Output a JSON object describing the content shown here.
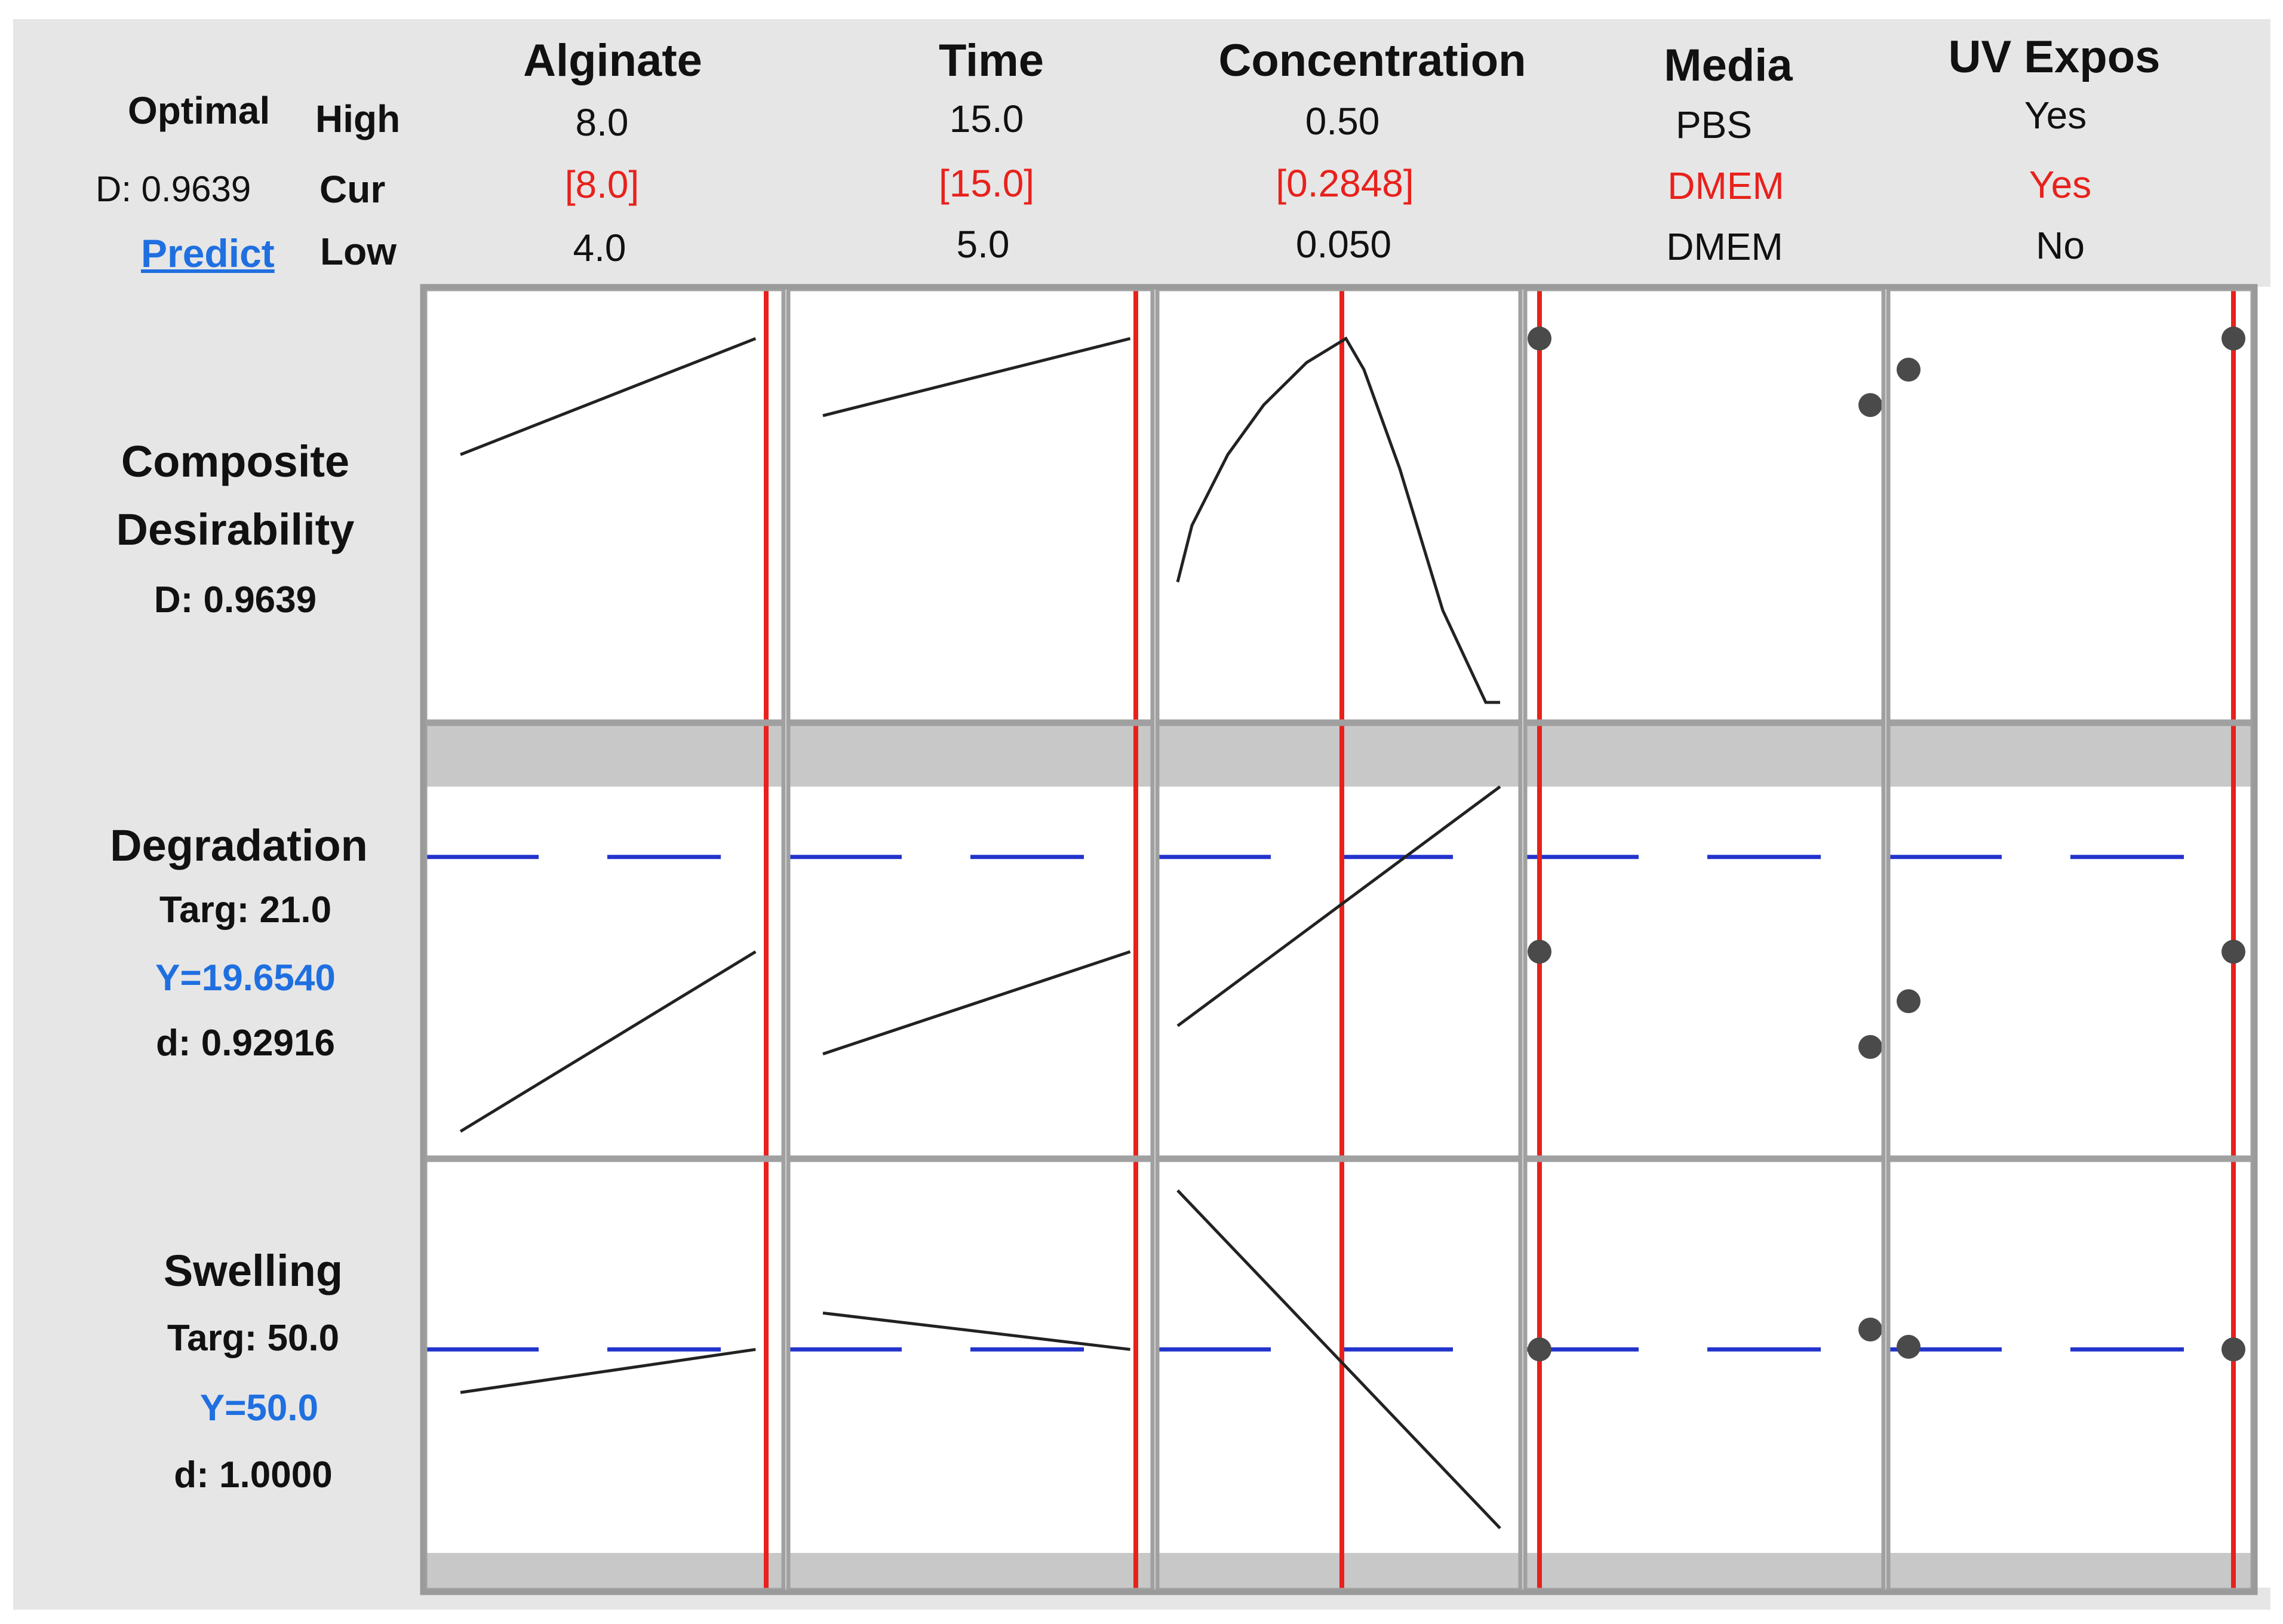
{
  "header": {
    "optimal_label": "Optimal",
    "d_value": "D: 0.9639",
    "predict_link": "Predict",
    "high_label": "High",
    "cur_label": "Cur",
    "low_label": "Low"
  },
  "factors": [
    {
      "name": "Alginate",
      "high": "8.0",
      "cur": "[8.0]",
      "low": "4.0"
    },
    {
      "name": "Time",
      "high": "15.0",
      "cur": "[15.0]",
      "low": "5.0"
    },
    {
      "name": "Concentration",
      "high": "0.50",
      "cur": "[0.2848]",
      "low": "0.050"
    },
    {
      "name": "Media",
      "high": "PBS",
      "cur": "DMEM",
      "low": "DMEM"
    },
    {
      "name": "UV Expos",
      "high": "Yes",
      "cur": "Yes",
      "low": "No"
    }
  ],
  "responses": [
    {
      "title": "Composite",
      "title2": "Desirability",
      "line1": "D: 0.9639"
    },
    {
      "title": "Degradation",
      "line1": "Targ: 21.0",
      "line2": "Y=19.6540",
      "line3": "d: 0.92916"
    },
    {
      "title": "Swelling",
      "line1": "Targ: 50.0",
      "line2": "Y=50.0",
      "line3": "d: 1.0000"
    }
  ],
  "colors": {
    "current_line": "#e8211c",
    "target_line": "#2233cc",
    "curve": "#222222",
    "point": "#4a4a4a",
    "panel_border": "#a0a0a0",
    "band": "#c8c8c8"
  },
  "chart_data": {
    "type": "line",
    "rows": [
      {
        "response": "Composite Desirability",
        "ylim": [
          0.45,
          1.0
        ],
        "target": null,
        "band_top": false,
        "band_bottom": false,
        "alginate": {
          "x": [
            4.0,
            8.0
          ],
          "y": [
            0.8,
            0.9639
          ]
        },
        "time": {
          "x": [
            5.0,
            15.0
          ],
          "y": [
            0.855,
            0.9639
          ]
        },
        "concentration": {
          "x": [
            0.05,
            0.07,
            0.12,
            0.17,
            0.23,
            0.2848,
            0.31,
            0.36,
            0.42,
            0.48,
            0.5
          ],
          "y": [
            0.62,
            0.7,
            0.8,
            0.87,
            0.93,
            0.9639,
            0.92,
            0.78,
            0.58,
            0.45,
            0.45
          ]
        },
        "media": [
          {
            "level": "DMEM",
            "y": 0.9639
          },
          {
            "level": "PBS",
            "y": 0.87
          }
        ],
        "uv": [
          {
            "level": "No",
            "y": 0.92
          },
          {
            "level": "Yes",
            "y": 0.9639
          }
        ]
      },
      {
        "response": "Degradation",
        "ylim": [
          17,
          22
        ],
        "target": 21.0,
        "band_top": true,
        "band_bottom": false,
        "alginate": {
          "x": [
            4.0,
            8.0
          ],
          "y": [
            17.1,
            19.654
          ]
        },
        "time": {
          "x": [
            5.0,
            15.0
          ],
          "y": [
            18.2,
            19.654
          ]
        },
        "concentration": {
          "x": [
            0.05,
            0.5
          ],
          "y": [
            18.6,
            22.0
          ]
        },
        "media": [
          {
            "level": "DMEM",
            "y": 19.654
          },
          {
            "level": "PBS",
            "y": 18.3
          }
        ],
        "uv": [
          {
            "level": "No",
            "y": 18.95
          },
          {
            "level": "Yes",
            "y": 19.654
          }
        ]
      },
      {
        "response": "Swelling",
        "ylim": [
          20,
          75
        ],
        "target": 50.0,
        "band_top": false,
        "band_bottom": true,
        "alginate": {
          "x": [
            4.0,
            8.0
          ],
          "y": [
            43.5,
            50.0
          ]
        },
        "time": {
          "x": [
            5.0,
            15.0
          ],
          "y": [
            55.5,
            50.0
          ]
        },
        "concentration": {
          "x": [
            0.05,
            0.5
          ],
          "y": [
            74.0,
            23.0
          ]
        },
        "media": [
          {
            "level": "DMEM",
            "y": 50.0
          },
          {
            "level": "PBS",
            "y": 53.0
          }
        ],
        "uv": [
          {
            "level": "No",
            "y": 50.4
          },
          {
            "level": "Yes",
            "y": 50.0
          }
        ]
      }
    ]
  }
}
